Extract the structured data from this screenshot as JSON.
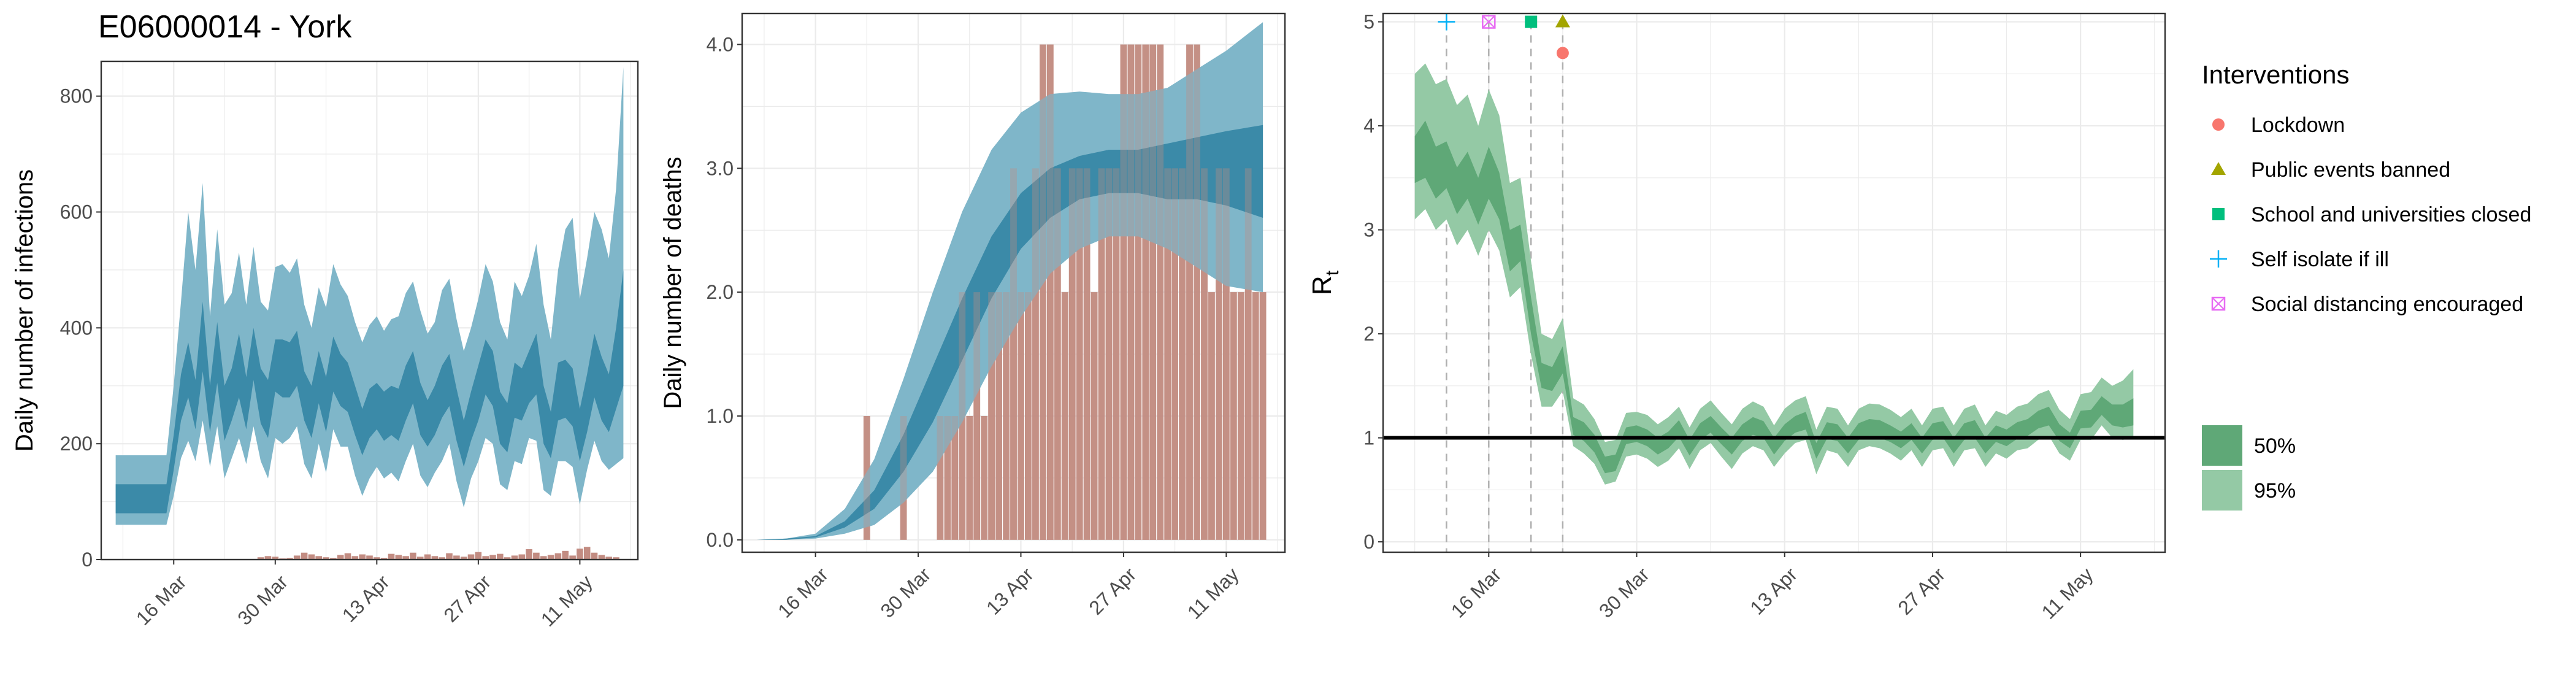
{
  "title": "E06000014 - York",
  "colors": {
    "infection_band_95": "#7fb6c9",
    "infection_band_50": "#3b8aa8",
    "observed_bars": "#c28c82",
    "rt_band_95": "#94c9a5",
    "rt_band_50": "#5fa877",
    "rt_line": "#2e8b57",
    "lockdown": "#f8766d",
    "public_events_banned": "#a3a500",
    "school_closed": "#00bf7d",
    "self_isolate": "#00b0f6",
    "social_distancing": "#e76bf3"
  },
  "chart_data": [
    {
      "id": "infections",
      "type": "area",
      "xlabel": "",
      "ylabel": "Daily number of infections",
      "xlim": [
        "2020-03-06",
        "2020-05-19"
      ],
      "ylim": [
        0,
        860
      ],
      "x_ticks": [
        "16 Mar",
        "30 Mar",
        "13 Apr",
        "27 Apr",
        "11 May"
      ],
      "x_tick_dates": [
        "2020-03-16",
        "2020-03-30",
        "2020-04-13",
        "2020-04-27",
        "2020-05-11"
      ],
      "y_ticks": [
        0,
        200,
        400,
        600,
        800
      ],
      "grid": true,
      "dates": [
        "2020-03-08",
        "2020-03-09",
        "2020-03-10",
        "2020-03-11",
        "2020-03-12",
        "2020-03-13",
        "2020-03-14",
        "2020-03-15",
        "2020-03-16",
        "2020-03-17",
        "2020-03-18",
        "2020-03-19",
        "2020-03-20",
        "2020-03-21",
        "2020-03-22",
        "2020-03-23",
        "2020-03-24",
        "2020-03-25",
        "2020-03-26",
        "2020-03-27",
        "2020-03-28",
        "2020-03-29",
        "2020-03-30",
        "2020-03-31",
        "2020-04-01",
        "2020-04-02",
        "2020-04-03",
        "2020-04-04",
        "2020-04-05",
        "2020-04-06",
        "2020-04-07",
        "2020-04-08",
        "2020-04-09",
        "2020-04-10",
        "2020-04-11",
        "2020-04-12",
        "2020-04-13",
        "2020-04-14",
        "2020-04-15",
        "2020-04-16",
        "2020-04-17",
        "2020-04-18",
        "2020-04-19",
        "2020-04-20",
        "2020-04-21",
        "2020-04-22",
        "2020-04-23",
        "2020-04-24",
        "2020-04-25",
        "2020-04-26",
        "2020-04-27",
        "2020-04-28",
        "2020-04-29",
        "2020-04-30",
        "2020-05-01",
        "2020-05-02",
        "2020-05-03",
        "2020-05-04",
        "2020-05-05",
        "2020-05-06",
        "2020-05-07",
        "2020-05-08",
        "2020-05-09",
        "2020-05-10",
        "2020-05-11",
        "2020-05-12",
        "2020-05-13",
        "2020-05-14",
        "2020-05-15",
        "2020-05-16",
        "2020-05-17"
      ],
      "lower95": [
        60,
        60,
        60,
        60,
        60,
        60,
        60,
        60,
        110,
        175,
        205,
        170,
        240,
        160,
        230,
        140,
        175,
        210,
        165,
        230,
        170,
        140,
        210,
        200,
        210,
        230,
        165,
        140,
        200,
        150,
        225,
        195,
        195,
        145,
        110,
        140,
        160,
        140,
        150,
        135,
        170,
        200,
        145,
        125,
        150,
        170,
        200,
        135,
        90,
        140,
        170,
        210,
        200,
        130,
        120,
        170,
        165,
        210,
        205,
        120,
        110,
        170,
        170,
        160,
        95,
        155,
        205,
        170,
        155,
        165,
        175
      ],
      "lower50": [
        80,
        80,
        80,
        80,
        80,
        80,
        80,
        80,
        155,
        240,
        280,
        225,
        325,
        220,
        305,
        205,
        240,
        280,
        225,
        310,
        235,
        210,
        290,
        280,
        280,
        300,
        240,
        210,
        270,
        220,
        290,
        265,
        255,
        215,
        180,
        210,
        225,
        205,
        215,
        205,
        240,
        270,
        215,
        195,
        215,
        245,
        265,
        205,
        160,
        205,
        240,
        285,
        265,
        200,
        185,
        245,
        240,
        270,
        285,
        200,
        175,
        240,
        245,
        230,
        170,
        220,
        280,
        240,
        220,
        260,
        300
      ],
      "upper50": [
        130,
        130,
        130,
        130,
        130,
        130,
        130,
        130,
        215,
        320,
        375,
        310,
        445,
        300,
        410,
        300,
        330,
        390,
        315,
        400,
        330,
        310,
        380,
        380,
        375,
        395,
        325,
        300,
        360,
        315,
        385,
        355,
        340,
        300,
        260,
        295,
        305,
        290,
        300,
        295,
        335,
        360,
        305,
        275,
        300,
        335,
        355,
        295,
        240,
        290,
        335,
        380,
        360,
        290,
        270,
        340,
        330,
        360,
        390,
        300,
        255,
        340,
        345,
        330,
        260,
        320,
        390,
        350,
        320,
        400,
        500
      ],
      "upper95": [
        180,
        180,
        180,
        180,
        180,
        180,
        180,
        180,
        300,
        445,
        600,
        500,
        650,
        420,
        570,
        440,
        460,
        530,
        440,
        540,
        445,
        430,
        505,
        510,
        495,
        520,
        440,
        400,
        470,
        435,
        510,
        475,
        455,
        410,
        375,
        405,
        420,
        395,
        415,
        420,
        460,
        480,
        430,
        390,
        410,
        465,
        485,
        415,
        360,
        400,
        450,
        510,
        480,
        410,
        380,
        480,
        455,
        490,
        545,
        440,
        380,
        500,
        570,
        590,
        450,
        520,
        600,
        570,
        520,
        640,
        850
      ],
      "observed_dates": [
        "2020-03-28",
        "2020-03-29",
        "2020-03-30",
        "2020-03-31",
        "2020-04-01",
        "2020-04-02",
        "2020-04-03",
        "2020-04-04",
        "2020-04-05",
        "2020-04-06",
        "2020-04-07",
        "2020-04-08",
        "2020-04-09",
        "2020-04-10",
        "2020-04-11",
        "2020-04-12",
        "2020-04-13",
        "2020-04-14",
        "2020-04-15",
        "2020-04-16",
        "2020-04-17",
        "2020-04-18",
        "2020-04-19",
        "2020-04-20",
        "2020-04-21",
        "2020-04-22",
        "2020-04-23",
        "2020-04-24",
        "2020-04-25",
        "2020-04-26",
        "2020-04-27",
        "2020-04-28",
        "2020-04-29",
        "2020-04-30",
        "2020-05-01",
        "2020-05-02",
        "2020-05-03",
        "2020-05-04",
        "2020-05-05",
        "2020-05-06",
        "2020-05-07",
        "2020-05-08",
        "2020-05-09",
        "2020-05-10",
        "2020-05-11",
        "2020-05-12",
        "2020-05-13",
        "2020-05-14",
        "2020-05-15",
        "2020-05-16"
      ],
      "observed_values": [
        4,
        6,
        5,
        2,
        3,
        7,
        12,
        9,
        6,
        4,
        3,
        8,
        11,
        6,
        9,
        7,
        4,
        3,
        10,
        8,
        6,
        12,
        5,
        9,
        6,
        4,
        11,
        7,
        5,
        9,
        13,
        6,
        8,
        10,
        4,
        7,
        9,
        18,
        12,
        6,
        8,
        11,
        15,
        7,
        19,
        22,
        12,
        8,
        5,
        4
      ]
    },
    {
      "id": "deaths",
      "type": "area",
      "xlabel": "",
      "ylabel": "Daily number of deaths",
      "xlim": [
        "2020-03-06",
        "2020-05-19"
      ],
      "ylim": [
        -0.1,
        4.25
      ],
      "x_ticks": [
        "16 Mar",
        "30 Mar",
        "13 Apr",
        "27 Apr",
        "11 May"
      ],
      "x_tick_dates": [
        "2020-03-16",
        "2020-03-30",
        "2020-04-13",
        "2020-04-27",
        "2020-05-11"
      ],
      "y_ticks": [
        "0.0",
        "1.0",
        "2.0",
        "3.0",
        "4.0"
      ],
      "grid": true,
      "curve_dates": [
        "2020-03-08",
        "2020-03-12",
        "2020-03-16",
        "2020-03-20",
        "2020-03-24",
        "2020-03-28",
        "2020-04-01",
        "2020-04-05",
        "2020-04-09",
        "2020-04-13",
        "2020-04-17",
        "2020-04-21",
        "2020-04-25",
        "2020-04-29",
        "2020-05-03",
        "2020-05-07",
        "2020-05-11",
        "2020-05-16"
      ],
      "lower95": [
        0,
        0,
        0.01,
        0.05,
        0.12,
        0.3,
        0.55,
        0.95,
        1.4,
        1.8,
        2.15,
        2.35,
        2.45,
        2.45,
        2.35,
        2.2,
        2.05,
        2.0
      ],
      "lower50": [
        0,
        0,
        0.02,
        0.1,
        0.25,
        0.55,
        0.95,
        1.45,
        1.95,
        2.35,
        2.6,
        2.75,
        2.8,
        2.8,
        2.75,
        2.75,
        2.7,
        2.6
      ],
      "upper50": [
        0,
        0.01,
        0.03,
        0.15,
        0.4,
        0.85,
        1.4,
        1.95,
        2.45,
        2.8,
        3.0,
        3.1,
        3.15,
        3.15,
        3.2,
        3.25,
        3.3,
        3.35
      ],
      "upper95": [
        0,
        0.01,
        0.05,
        0.25,
        0.65,
        1.3,
        2.0,
        2.65,
        3.15,
        3.45,
        3.6,
        3.62,
        3.6,
        3.6,
        3.65,
        3.8,
        3.95,
        4.18
      ],
      "observed_dates": [
        "2020-03-23",
        "2020-03-28",
        "2020-04-02",
        "2020-04-03",
        "2020-04-04",
        "2020-04-05",
        "2020-04-06",
        "2020-04-07",
        "2020-04-08",
        "2020-04-09",
        "2020-04-10",
        "2020-04-11",
        "2020-04-12",
        "2020-04-13",
        "2020-04-14",
        "2020-04-15",
        "2020-04-16",
        "2020-04-17",
        "2020-04-18",
        "2020-04-19",
        "2020-04-20",
        "2020-04-21",
        "2020-04-22",
        "2020-04-23",
        "2020-04-24",
        "2020-04-25",
        "2020-04-26",
        "2020-04-27",
        "2020-04-28",
        "2020-04-29",
        "2020-04-30",
        "2020-05-01",
        "2020-05-02",
        "2020-05-03",
        "2020-05-04",
        "2020-05-05",
        "2020-05-06",
        "2020-05-07",
        "2020-05-08",
        "2020-05-09",
        "2020-05-10",
        "2020-05-11",
        "2020-05-12",
        "2020-05-13",
        "2020-05-14",
        "2020-05-15",
        "2020-05-16"
      ],
      "observed_values": [
        1,
        1,
        1,
        1,
        1,
        2,
        1,
        2,
        1,
        2,
        2,
        2,
        3,
        2,
        2,
        3,
        4,
        4,
        3,
        2,
        3,
        3,
        3,
        2,
        3,
        3,
        3,
        4,
        4,
        4,
        4,
        4,
        4,
        3,
        3,
        3,
        4,
        4,
        3,
        2,
        3,
        3,
        2,
        2,
        3,
        2,
        2
      ]
    },
    {
      "id": "rt",
      "type": "area",
      "xlabel": "",
      "ylabel": "R",
      "ylabel_subscript": "t",
      "xlim": [
        "2020-03-06",
        "2020-05-19"
      ],
      "ylim": [
        -0.1,
        5.08
      ],
      "x_ticks": [
        "16 Mar",
        "30 Mar",
        "13 Apr",
        "27 Apr",
        "11 May"
      ],
      "x_tick_dates": [
        "2020-03-16",
        "2020-03-30",
        "2020-04-13",
        "2020-04-27",
        "2020-05-11"
      ],
      "y_ticks": [
        0,
        1,
        2,
        3,
        4,
        5
      ],
      "grid": true,
      "reference_line": 1,
      "dates": [
        "2020-03-09",
        "2020-03-10",
        "2020-03-11",
        "2020-03-12",
        "2020-03-13",
        "2020-03-14",
        "2020-03-15",
        "2020-03-16",
        "2020-03-17",
        "2020-03-18",
        "2020-03-19",
        "2020-03-20",
        "2020-03-21",
        "2020-03-22",
        "2020-03-23",
        "2020-03-24",
        "2020-03-25",
        "2020-03-26",
        "2020-03-27",
        "2020-03-28",
        "2020-03-29",
        "2020-03-30",
        "2020-03-31",
        "2020-04-01",
        "2020-04-02",
        "2020-04-03",
        "2020-04-04",
        "2020-04-05",
        "2020-04-06",
        "2020-04-07",
        "2020-04-08",
        "2020-04-09",
        "2020-04-10",
        "2020-04-11",
        "2020-04-12",
        "2020-04-13",
        "2020-04-14",
        "2020-04-15",
        "2020-04-16",
        "2020-04-17",
        "2020-04-18",
        "2020-04-19",
        "2020-04-20",
        "2020-04-21",
        "2020-04-22",
        "2020-04-23",
        "2020-04-24",
        "2020-04-25",
        "2020-04-26",
        "2020-04-27",
        "2020-04-28",
        "2020-04-29",
        "2020-04-30",
        "2020-05-01",
        "2020-05-02",
        "2020-05-03",
        "2020-05-04",
        "2020-05-05",
        "2020-05-06",
        "2020-05-07",
        "2020-05-08",
        "2020-05-09",
        "2020-05-10",
        "2020-05-11",
        "2020-05-12",
        "2020-05-13",
        "2020-05-14",
        "2020-05-15",
        "2020-05-16"
      ],
      "lower95": [
        3.1,
        3.2,
        3.0,
        3.1,
        2.85,
        3.0,
        2.75,
        3.0,
        2.8,
        2.35,
        2.45,
        1.8,
        1.3,
        1.3,
        1.45,
        0.92,
        0.85,
        0.75,
        0.55,
        0.58,
        0.82,
        0.84,
        0.8,
        0.72,
        0.78,
        0.9,
        0.7,
        0.88,
        0.95,
        0.82,
        0.7,
        0.85,
        0.92,
        0.88,
        0.72,
        0.85,
        0.95,
        0.98,
        0.65,
        0.88,
        0.85,
        0.72,
        0.88,
        0.92,
        0.9,
        0.85,
        0.78,
        0.88,
        0.72,
        0.88,
        0.9,
        0.72,
        0.88,
        0.9,
        0.72,
        0.85,
        0.8,
        0.88,
        0.9,
        0.98,
        1.02,
        0.85,
        0.78,
        0.98,
        0.98,
        1.12,
        1.0,
        0.98,
        1.0
      ],
      "lower50": [
        3.45,
        3.5,
        3.3,
        3.4,
        3.15,
        3.3,
        3.05,
        3.3,
        3.1,
        2.6,
        2.7,
        2.0,
        1.48,
        1.45,
        1.62,
        1.03,
        0.97,
        0.86,
        0.66,
        0.68,
        0.94,
        0.96,
        0.92,
        0.84,
        0.9,
        1.01,
        0.83,
        0.98,
        1.05,
        0.94,
        0.84,
        0.97,
        1.03,
        1.0,
        0.84,
        0.97,
        1.05,
        1.08,
        0.8,
        0.99,
        0.97,
        0.85,
        0.98,
        1.02,
        1.0,
        0.96,
        0.9,
        0.98,
        0.85,
        0.98,
        1.0,
        0.85,
        0.98,
        1.0,
        0.85,
        0.96,
        0.92,
        0.99,
        1.02,
        1.09,
        1.12,
        0.97,
        0.9,
        1.09,
        1.1,
        1.22,
        1.12,
        1.1,
        1.12
      ],
      "upper50": [
        3.9,
        4.05,
        3.8,
        3.85,
        3.6,
        3.75,
        3.5,
        3.8,
        3.55,
        3.0,
        3.05,
        2.35,
        1.72,
        1.68,
        1.88,
        1.2,
        1.15,
        1.03,
        0.82,
        0.84,
        1.1,
        1.12,
        1.08,
        1.0,
        1.06,
        1.17,
        0.98,
        1.14,
        1.21,
        1.1,
        1.0,
        1.13,
        1.2,
        1.16,
        1.0,
        1.13,
        1.21,
        1.25,
        0.95,
        1.15,
        1.13,
        1.0,
        1.14,
        1.18,
        1.17,
        1.12,
        1.06,
        1.14,
        1.0,
        1.14,
        1.16,
        1.0,
        1.14,
        1.17,
        1.0,
        1.12,
        1.08,
        1.15,
        1.18,
        1.26,
        1.3,
        1.13,
        1.05,
        1.26,
        1.27,
        1.4,
        1.32,
        1.32,
        1.38
      ],
      "upper95": [
        4.5,
        4.6,
        4.4,
        4.45,
        4.2,
        4.3,
        4.0,
        4.35,
        4.1,
        3.45,
        3.5,
        2.7,
        2.0,
        1.95,
        2.15,
        1.38,
        1.32,
        1.18,
        0.96,
        0.98,
        1.24,
        1.25,
        1.22,
        1.13,
        1.2,
        1.3,
        1.1,
        1.28,
        1.36,
        1.24,
        1.13,
        1.28,
        1.35,
        1.3,
        1.12,
        1.28,
        1.36,
        1.4,
        1.08,
        1.3,
        1.28,
        1.12,
        1.28,
        1.33,
        1.32,
        1.27,
        1.2,
        1.28,
        1.12,
        1.28,
        1.3,
        1.12,
        1.28,
        1.32,
        1.12,
        1.26,
        1.22,
        1.3,
        1.33,
        1.42,
        1.46,
        1.27,
        1.18,
        1.42,
        1.44,
        1.58,
        1.5,
        1.55,
        1.66
      ]
    }
  ],
  "interventions": {
    "title": "Interventions",
    "items": [
      {
        "label": "Lockdown",
        "date": "2020-03-23",
        "marker": "circle",
        "color_key": "lockdown",
        "y": 4.7
      },
      {
        "label": "Public events banned",
        "date": "2020-03-23",
        "marker": "triangle",
        "color_key": "public_events_banned",
        "y": 5.0
      },
      {
        "label": "School and universities closed",
        "date": "2020-03-20",
        "marker": "square",
        "color_key": "school_closed",
        "y": 5.0
      },
      {
        "label": "Self isolate if ill",
        "date": "2020-03-12",
        "marker": "plus",
        "color_key": "self_isolate",
        "y": 5.0
      },
      {
        "label": "Social distancing encouraged",
        "date": "2020-03-16",
        "marker": "boxed-x",
        "color_key": "social_distancing",
        "y": 5.0
      }
    ]
  },
  "bands_legend": {
    "items": [
      {
        "label": "50%",
        "color_key": "rt_band_50"
      },
      {
        "label": "95%",
        "color_key": "rt_band_95"
      }
    ]
  }
}
